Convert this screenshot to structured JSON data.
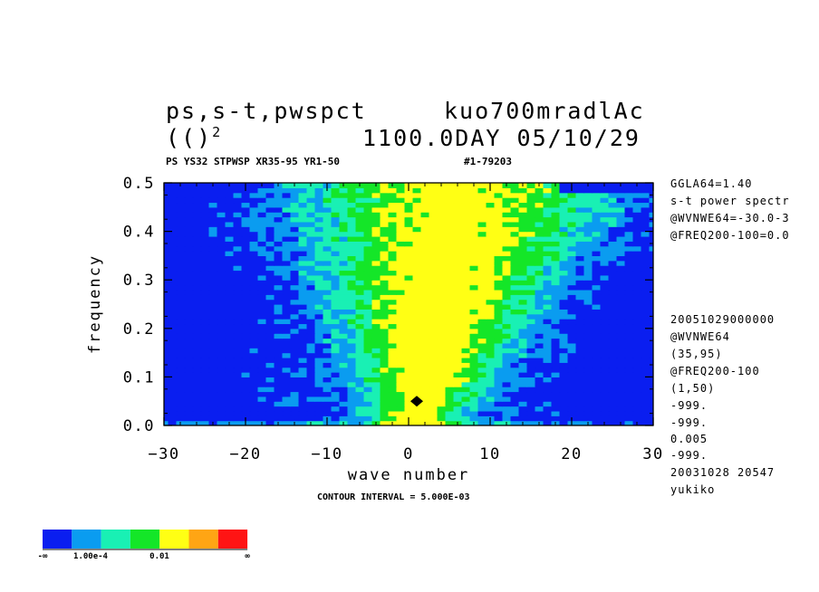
{
  "header": {
    "title_left": "ps,s-t,pwspct",
    "title_right": "kuo700mradlAc",
    "subtitle_left": "(()",
    "subtitle_sup": "2",
    "subtitle_right": "1100.0DAY 05/10/29",
    "info_left": "PS YS32 STPWSP XR35-95 YR1-50",
    "info_right": "#1-79203"
  },
  "side_notes_top": [
    "GGLA64=1.40",
    "s-t power spectr",
    "@WVNWE64=-30.0-3",
    "@FREQ200-100=0.0"
  ],
  "side_notes_bottom": [
    "20051029000000",
    "@WVNWE64",
    "(35,95)",
    "@FREQ200-100",
    "(1,50)",
    "-999.",
    "-999.",
    "0.005",
    "-999.",
    "20031028  20547",
    "yukiko"
  ],
  "contour_text": "CONTOUR INTERVAL = 5.000E-03",
  "colors": {
    "levels": [
      "#0a1ef0",
      "#0a9cf0",
      "#19f0b4",
      "#14e628",
      "#ffff14",
      "#ffa514",
      "#ff1414"
    ],
    "marker": "#000000"
  },
  "colorbar": {
    "labels": [
      "-∞",
      "1.00e-4",
      "0.01",
      "∞"
    ]
  },
  "chart_data": {
    "type": "heatmap",
    "title": "ps,s-t,pwspct",
    "xlabel": "wave number",
    "ylabel": "frequency",
    "xlim": [
      -30,
      30
    ],
    "ylim": [
      0.0,
      0.5
    ],
    "xticks": [
      -30,
      -20,
      -10,
      0,
      10,
      20,
      30
    ],
    "xtick_labels": [
      "−30",
      "−20",
      "−10",
      "0",
      "10",
      "20",
      "30"
    ],
    "yticks": [
      0.0,
      0.1,
      0.2,
      0.3,
      0.4,
      0.5
    ],
    "ytick_labels": [
      "0.0",
      "0.1",
      "0.2",
      "0.3",
      "0.4",
      "0.5"
    ],
    "contour_interval": 0.005,
    "peak": {
      "x": 1,
      "y": 0.05
    },
    "grid": false
  }
}
